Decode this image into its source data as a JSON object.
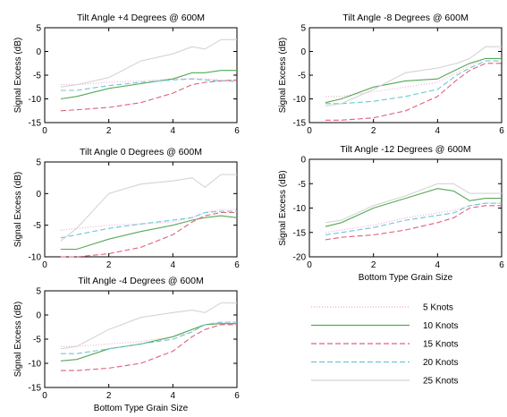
{
  "chart_data": [
    {
      "type": "line",
      "title": "Tilt Angle +4 Degrees @ 600M",
      "xlabel": "",
      "ylabel": "Signal Excess (dB)",
      "xlim": [
        0,
        6
      ],
      "ylim": [
        -15,
        5
      ],
      "xticks": [
        "0",
        "2",
        "4",
        "6"
      ],
      "yticks": [
        "5",
        "0",
        "-5",
        "-10",
        "-15"
      ],
      "series": [
        {
          "name": "5 Knots",
          "x": [
            0.5,
            1,
            2,
            3,
            4,
            4.6,
            5,
            5.5,
            6
          ],
          "y": [
            -7.0,
            -7.0,
            -6.5,
            -6.2,
            -5.8,
            -5.7,
            -5.8,
            -6.0,
            -6.2
          ]
        },
        {
          "name": "10 Knots",
          "x": [
            0.5,
            1,
            2,
            3,
            4,
            4.6,
            5,
            5.5,
            6
          ],
          "y": [
            -10.0,
            -9.5,
            -7.8,
            -6.8,
            -5.8,
            -4.5,
            -4.5,
            -4.0,
            -4.0
          ]
        },
        {
          "name": "15 Knots",
          "x": [
            0.5,
            1,
            2,
            3,
            4,
            4.6,
            5,
            5.5,
            6
          ],
          "y": [
            -12.5,
            -12.3,
            -11.8,
            -10.8,
            -8.8,
            -7.0,
            -6.5,
            -6.2,
            -6.0
          ]
        },
        {
          "name": "20 Knots",
          "x": [
            0.5,
            1,
            2,
            3,
            4,
            4.6,
            5,
            5.5,
            6
          ],
          "y": [
            -8.2,
            -8.2,
            -7.2,
            -6.5,
            -6.0,
            -5.8,
            -6.0,
            -6.2,
            -6.3
          ]
        },
        {
          "name": "25 Knots",
          "x": [
            0.5,
            1,
            2,
            3,
            4,
            4.6,
            5,
            5.5,
            6
          ],
          "y": [
            -7.5,
            -7.0,
            -5.5,
            -2.0,
            -0.5,
            1.0,
            0.5,
            2.5,
            2.5
          ]
        }
      ]
    },
    {
      "type": "line",
      "title": "Tilt Angle -8 Degrees @ 600M",
      "xlabel": "",
      "ylabel": "Signal Excess (dB)",
      "xlim": [
        0,
        6
      ],
      "ylim": [
        -15,
        5
      ],
      "xticks": [
        "0",
        "2",
        "4",
        "6"
      ],
      "yticks": [
        "5",
        "0",
        "-5",
        "-10",
        "-15"
      ],
      "series": [
        {
          "name": "5 Knots",
          "x": [
            0.5,
            1,
            2,
            3,
            4,
            4.6,
            5,
            5.5,
            6
          ],
          "y": [
            -9.5,
            -9.5,
            -8.5,
            -7.5,
            -6.5,
            -4.5,
            -3.0,
            -1.5,
            -1.5
          ]
        },
        {
          "name": "10 Knots",
          "x": [
            0.5,
            1,
            2,
            3,
            4,
            4.6,
            5,
            5.5,
            6
          ],
          "y": [
            -10.8,
            -10.0,
            -7.5,
            -6.2,
            -5.8,
            -3.8,
            -2.5,
            -1.5,
            -1.5
          ]
        },
        {
          "name": "15 Knots",
          "x": [
            0.5,
            1,
            2,
            3,
            4,
            4.6,
            5,
            5.5,
            6
          ],
          "y": [
            -14.5,
            -14.5,
            -14.0,
            -12.5,
            -9.5,
            -6.0,
            -4.0,
            -2.5,
            -2.5
          ]
        },
        {
          "name": "20 Knots",
          "x": [
            0.5,
            1,
            2,
            3,
            4,
            4.6,
            5,
            5.5,
            6
          ],
          "y": [
            -11.0,
            -11.0,
            -10.5,
            -9.5,
            -8.0,
            -5.0,
            -3.5,
            -2.0,
            -2.0
          ]
        },
        {
          "name": "25 Knots",
          "x": [
            0.5,
            1,
            2,
            3,
            4,
            4.6,
            5,
            5.5,
            6
          ],
          "y": [
            -11.5,
            -11.0,
            -8.0,
            -4.5,
            -3.5,
            -2.5,
            -1.5,
            1.0,
            1.0
          ]
        }
      ]
    },
    {
      "type": "line",
      "title": "Tilt Angle 0 Degrees @ 600M",
      "xlabel": "",
      "ylabel": "Signal Excess (dB)",
      "xlim": [
        0,
        6
      ],
      "ylim": [
        -10,
        5
      ],
      "xticks": [
        "0",
        "2",
        "4",
        "6"
      ],
      "yticks": [
        "5",
        "0",
        "-5",
        "-10"
      ],
      "series": [
        {
          "name": "5 Knots",
          "x": [
            0.5,
            1,
            2,
            3,
            4,
            4.6,
            5,
            5.5,
            6
          ],
          "y": [
            -5.8,
            -5.5,
            -5.0,
            -4.8,
            -4.5,
            -3.8,
            -3.0,
            -2.5,
            -2.5
          ]
        },
        {
          "name": "10 Knots",
          "x": [
            0.5,
            1,
            2,
            3,
            4,
            4.6,
            5,
            5.5,
            6
          ],
          "y": [
            -8.8,
            -8.8,
            -7.2,
            -6.0,
            -5.0,
            -4.2,
            -3.8,
            -3.5,
            -3.8
          ]
        },
        {
          "name": "15 Knots",
          "x": [
            0.5,
            1,
            2,
            3,
            4,
            4.6,
            5,
            5.5,
            6
          ],
          "y": [
            -10.0,
            -10.0,
            -9.5,
            -8.5,
            -6.5,
            -4.5,
            -3.5,
            -3.0,
            -3.0
          ]
        },
        {
          "name": "20 Knots",
          "x": [
            0.5,
            1,
            2,
            3,
            4,
            4.6,
            5,
            5.5,
            6
          ],
          "y": [
            -7.0,
            -6.5,
            -5.5,
            -4.8,
            -4.2,
            -3.8,
            -3.0,
            -2.8,
            -2.8
          ]
        },
        {
          "name": "25 Knots",
          "x": [
            0.5,
            1,
            2,
            3,
            4,
            4.6,
            5,
            5.5,
            6
          ],
          "y": [
            -7.5,
            -5.5,
            0.0,
            1.5,
            2.0,
            2.5,
            1.0,
            3.0,
            3.0
          ]
        }
      ]
    },
    {
      "type": "line",
      "title": "Tilt Angle -12 Degrees @ 600M",
      "xlabel": "Bottom Type Grain Size",
      "ylabel": "Signal Excess (dB)",
      "xlim": [
        0,
        6
      ],
      "ylim": [
        -20,
        0
      ],
      "xticks": [
        "0",
        "2",
        "4",
        "6"
      ],
      "yticks": [
        "0",
        "-5",
        "-10",
        "-15",
        "-20"
      ],
      "series": [
        {
          "name": "5 Knots",
          "x": [
            0.5,
            1,
            2,
            3,
            4,
            4.5,
            5,
            5.5,
            6
          ],
          "y": [
            -15.0,
            -14.5,
            -13.5,
            -12.0,
            -11.0,
            -10.5,
            -9.5,
            -9.0,
            -9.0
          ]
        },
        {
          "name": "10 Knots",
          "x": [
            0.5,
            1,
            2,
            3,
            4,
            4.5,
            5,
            5.5,
            6
          ],
          "y": [
            -13.8,
            -13.0,
            -10.0,
            -8.0,
            -6.0,
            -6.5,
            -8.5,
            -8.0,
            -8.0
          ]
        },
        {
          "name": "15 Knots",
          "x": [
            0.5,
            1,
            2,
            3,
            4,
            4.5,
            5,
            5.5,
            6
          ],
          "y": [
            -16.5,
            -16.0,
            -15.5,
            -14.5,
            -13.0,
            -12.0,
            -10.0,
            -9.5,
            -9.5
          ]
        },
        {
          "name": "20 Knots",
          "x": [
            0.5,
            1,
            2,
            3,
            4,
            4.5,
            5,
            5.5,
            6
          ],
          "y": [
            -15.5,
            -15.0,
            -14.0,
            -12.5,
            -11.5,
            -11.0,
            -9.5,
            -9.0,
            -9.0
          ]
        },
        {
          "name": "25 Knots",
          "x": [
            0.5,
            1,
            2,
            3,
            4,
            4.5,
            5,
            5.5,
            6
          ],
          "y": [
            -13.0,
            -12.5,
            -9.5,
            -7.5,
            -5.0,
            -5.0,
            -7.0,
            -7.0,
            -7.0
          ]
        }
      ]
    },
    {
      "type": "line",
      "title": "Tilt Angle -4 Degrees @ 600M",
      "xlabel": "Bottom Type Grain Size",
      "ylabel": "Signal Excess (dB)",
      "xlim": [
        0,
        6
      ],
      "ylim": [
        -15,
        5
      ],
      "xticks": [
        "0",
        "2",
        "4",
        "6"
      ],
      "yticks": [
        "5",
        "0",
        "-5",
        "-10",
        "-15"
      ],
      "series": [
        {
          "name": "5 Knots",
          "x": [
            0.5,
            1,
            2,
            3,
            4,
            4.6,
            5,
            5.5,
            6
          ],
          "y": [
            -6.5,
            -6.5,
            -6.0,
            -5.5,
            -4.5,
            -3.5,
            -2.0,
            -1.5,
            -1.5
          ]
        },
        {
          "name": "10 Knots",
          "x": [
            0.5,
            1,
            2,
            3,
            4,
            4.6,
            5,
            5.5,
            6
          ],
          "y": [
            -9.5,
            -9.2,
            -7.0,
            -6.0,
            -4.5,
            -3.0,
            -2.0,
            -1.8,
            -1.8
          ]
        },
        {
          "name": "15 Knots",
          "x": [
            0.5,
            1,
            2,
            3,
            4,
            4.6,
            5,
            5.5,
            6
          ],
          "y": [
            -11.5,
            -11.5,
            -11.0,
            -10.0,
            -7.5,
            -4.5,
            -3.0,
            -2.0,
            -2.0
          ]
        },
        {
          "name": "20 Knots",
          "x": [
            0.5,
            1,
            2,
            3,
            4,
            4.6,
            5,
            5.5,
            6
          ],
          "y": [
            -8.0,
            -8.0,
            -7.0,
            -6.0,
            -5.0,
            -3.5,
            -2.0,
            -1.5,
            -1.5
          ]
        },
        {
          "name": "25 Knots",
          "x": [
            0.5,
            1,
            2,
            3,
            4,
            4.6,
            5,
            5.5,
            6
          ],
          "y": [
            -7.0,
            -6.5,
            -3.0,
            -0.5,
            0.5,
            1.0,
            0.5,
            2.5,
            2.5
          ]
        }
      ]
    }
  ],
  "legend": {
    "items": [
      {
        "label": "5 Knots",
        "color": "#f2a6d2",
        "dash": "1,2"
      },
      {
        "label": "10 Knots",
        "color": "#55a855",
        "dash": ""
      },
      {
        "label": "15 Knots",
        "color": "#e0607a",
        "dash": "6,3"
      },
      {
        "label": "20 Knots",
        "color": "#6cc7d6",
        "dash": "6,3"
      },
      {
        "label": "25 Knots",
        "color": "#d4d4d4",
        "dash": ""
      }
    ]
  },
  "colors": {
    "5 Knots": "#f2a6d2",
    "10 Knots": "#55a855",
    "15 Knots": "#e0607a",
    "20 Knots": "#6cc7d6",
    "25 Knots": "#d4d4d4"
  }
}
